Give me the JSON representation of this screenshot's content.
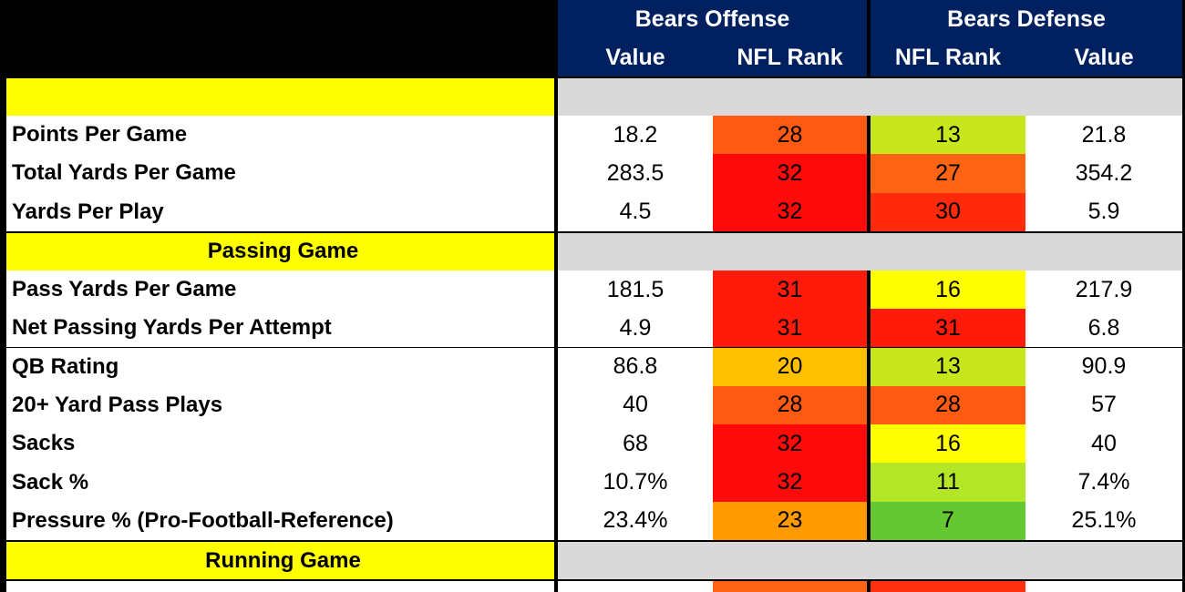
{
  "header": {
    "offense_title": "Bears Offense",
    "defense_title": "Bears Defense",
    "columns": [
      "Value",
      "NFL Rank",
      "NFL Rank",
      "Value"
    ]
  },
  "sections": [
    {
      "rows": [
        {
          "label": "Points Per Game",
          "off_value": "18.2",
          "off_rank": 28,
          "off_color": "#ff5a14",
          "def_rank": 13,
          "def_color": "#c8e61e",
          "def_value": "21.8"
        },
        {
          "label": "Total Yards Per Game",
          "off_value": "283.5",
          "off_rank": 32,
          "off_color": "#ff0a0a",
          "def_rank": 27,
          "def_color": "#ff6414",
          "def_value": "354.2"
        },
        {
          "label": "Yards Per Play",
          "off_value": "4.5",
          "off_rank": 32,
          "off_color": "#ff0a0a",
          "def_rank": 30,
          "def_color": "#ff2a0c",
          "def_value": "5.9"
        }
      ]
    },
    {
      "title": "Passing Game",
      "rows": [
        {
          "label": "Pass Yards Per Game",
          "off_value": "181.5",
          "off_rank": 31,
          "off_color": "#ff1a0a",
          "def_rank": 16,
          "def_color": "#ffff00",
          "def_value": "217.9"
        },
        {
          "label": "Net Passing Yards Per Attempt",
          "off_value": "4.9",
          "off_rank": 31,
          "off_color": "#ff1a0a",
          "def_rank": 31,
          "def_color": "#ff1a0a",
          "def_value": "6.8"
        },
        {
          "label": "QB Rating",
          "off_value": "86.8",
          "off_rank": 20,
          "off_color": "#ffc000",
          "def_rank": 13,
          "def_color": "#c8e61e",
          "def_value": "90.9"
        },
        {
          "label": "20+ Yard Pass Plays",
          "off_value": "40",
          "off_rank": 28,
          "off_color": "#ff5a14",
          "def_rank": 28,
          "def_color": "#ff5a14",
          "def_value": "57"
        },
        {
          "label": "Sacks",
          "off_value": "68",
          "off_rank": 32,
          "off_color": "#ff0a0a",
          "def_rank": 16,
          "def_color": "#ffff00",
          "def_value": "40"
        },
        {
          "label": "Sack %",
          "off_value": "10.7%",
          "off_rank": 32,
          "off_color": "#ff0a0a",
          "def_rank": 11,
          "def_color": "#b4e628",
          "def_value": "7.4%"
        },
        {
          "label": "Pressure % (Pro-Football-Reference)",
          "off_value": "23.4%",
          "off_rank": 23,
          "off_color": "#ff9a00",
          "def_rank": 7,
          "def_color": "#64c832",
          "def_value": "25.1%"
        }
      ]
    },
    {
      "title": "Running Game"
    }
  ]
}
